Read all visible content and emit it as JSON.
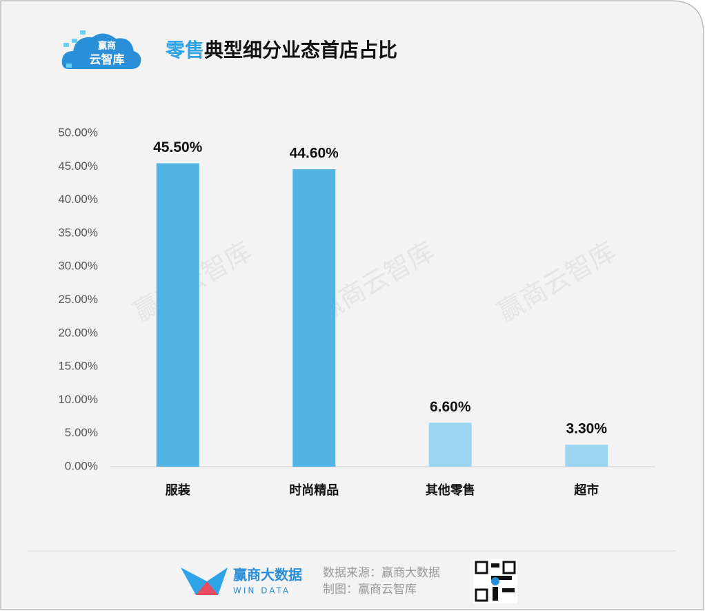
{
  "logo": {
    "top": "赢商",
    "bottom": "云智库"
  },
  "watermark": "赢商云智库",
  "chart_data": {
    "type": "bar",
    "title_highlight": "零售",
    "title": "典型细分业态首店占比",
    "categories": [
      "服装",
      "时尚精品",
      "其他零售",
      "超市"
    ],
    "values": [
      45.5,
      44.6,
      6.6,
      3.3
    ],
    "value_labels": [
      "45.50%",
      "44.60%",
      "6.60%",
      "3.30%"
    ],
    "colors": [
      "#52b4e4",
      "#52b4e4",
      "#9dd4f0",
      "#9dd4f0"
    ],
    "ylim": [
      0,
      50
    ],
    "yticks": [
      {
        "value": 0,
        "label": "0.00%"
      },
      {
        "value": 5,
        "label": "5.00%"
      },
      {
        "value": 10,
        "label": "10.00%"
      },
      {
        "value": 15,
        "label": "15.00%"
      },
      {
        "value": 20,
        "label": "20.00%"
      },
      {
        "value": 25,
        "label": "25.00%"
      },
      {
        "value": 30,
        "label": "30.00%"
      },
      {
        "value": 35,
        "label": "35.00%"
      },
      {
        "value": 40,
        "label": "40.00%"
      },
      {
        "value": 45,
        "label": "45.00%"
      },
      {
        "value": 50,
        "label": "50.00%"
      }
    ],
    "grid": false
  },
  "footer": {
    "brand": "赢商大数据",
    "brand_en": "WIN DATA",
    "source": "数据来源：赢商大数据",
    "made_by": "制图：赢商云智库"
  }
}
